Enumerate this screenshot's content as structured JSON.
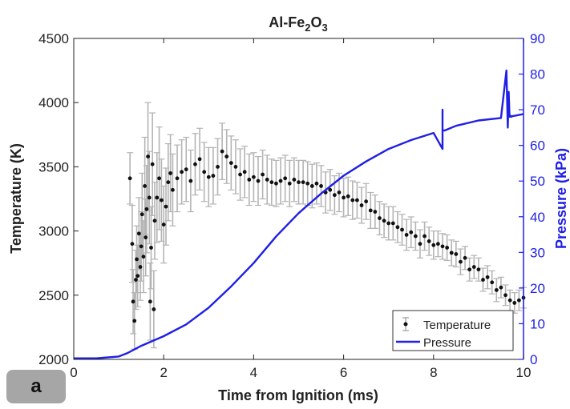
{
  "panel_label": "a",
  "chart_data": {
    "type": "scatter",
    "title_main": "Al-Fe",
    "title_sub1": "2",
    "title_mid": "O",
    "title_sub2": "3",
    "xlabel": "Time from Ignition (ms)",
    "ylabel_left": "Temperature (K)",
    "ylabel_right": "Pressure (kPa)",
    "xlim": [
      0,
      10
    ],
    "ylim_left": [
      2000,
      4500
    ],
    "ylim_right": [
      0,
      90
    ],
    "xticks": [
      "0",
      "2",
      "4",
      "6",
      "8",
      "10"
    ],
    "yticks_left": [
      "2000",
      "2500",
      "3000",
      "3500",
      "4000",
      "4500"
    ],
    "yticks_right": [
      "0",
      "10",
      "20",
      "30",
      "40",
      "50",
      "60",
      "70",
      "80",
      "90"
    ],
    "legend_position": "bottom-right",
    "colors": {
      "temperature": "#111111",
      "error": "#b4b4b4",
      "pressure": "#1f1fe6",
      "right_axis": "#1f1fe6"
    },
    "series": [
      {
        "name": "Temperature",
        "axis": "left",
        "style": "points-with-error-bars",
        "x": [
          1.25,
          1.3,
          1.32,
          1.35,
          1.38,
          1.4,
          1.42,
          1.45,
          1.48,
          1.5,
          1.52,
          1.55,
          1.58,
          1.6,
          1.62,
          1.65,
          1.68,
          1.7,
          1.72,
          1.75,
          1.78,
          1.8,
          1.85,
          1.9,
          1.95,
          2.0,
          2.05,
          2.1,
          2.15,
          2.2,
          2.3,
          2.4,
          2.5,
          2.6,
          2.7,
          2.8,
          2.9,
          3.0,
          3.1,
          3.2,
          3.3,
          3.4,
          3.5,
          3.6,
          3.7,
          3.8,
          3.9,
          4.0,
          4.1,
          4.2,
          4.3,
          4.4,
          4.5,
          4.6,
          4.7,
          4.8,
          4.9,
          5.0,
          5.1,
          5.2,
          5.3,
          5.4,
          5.5,
          5.6,
          5.7,
          5.8,
          5.9,
          6.0,
          6.1,
          6.2,
          6.3,
          6.4,
          6.5,
          6.6,
          6.7,
          6.8,
          6.9,
          7.0,
          7.1,
          7.2,
          7.3,
          7.4,
          7.5,
          7.6,
          7.7,
          7.8,
          7.9,
          8.0,
          8.1,
          8.2,
          8.3,
          8.4,
          8.5,
          8.6,
          8.7,
          8.8,
          8.9,
          9.0,
          9.1,
          9.2,
          9.3,
          9.4,
          9.5,
          9.6,
          9.7,
          9.8,
          9.9,
          10.0
        ],
        "y": [
          3410,
          2900,
          2450,
          2300,
          2620,
          2780,
          2650,
          2980,
          2720,
          2880,
          3130,
          2800,
          3350,
          2950,
          3170,
          3580,
          3260,
          2450,
          2870,
          3520,
          2390,
          3080,
          3260,
          3410,
          3240,
          3050,
          3190,
          3380,
          3450,
          3320,
          3410,
          3460,
          3480,
          3390,
          3520,
          3560,
          3460,
          3420,
          3430,
          3500,
          3620,
          3580,
          3530,
          3500,
          3440,
          3460,
          3400,
          3420,
          3390,
          3440,
          3400,
          3380,
          3370,
          3390,
          3410,
          3370,
          3400,
          3380,
          3380,
          3370,
          3350,
          3370,
          3350,
          3300,
          3320,
          3280,
          3300,
          3260,
          3270,
          3240,
          3240,
          3200,
          3230,
          3160,
          3150,
          3100,
          3080,
          3060,
          3060,
          3030,
          3010,
          2970,
          2990,
          2960,
          2900,
          2960,
          2920,
          2890,
          2900,
          2880,
          2870,
          2830,
          2820,
          2760,
          2790,
          2700,
          2720,
          2700,
          2620,
          2640,
          2600,
          2540,
          2560,
          2500,
          2460,
          2440,
          2460,
          2480
        ],
        "error": [
          200,
          300,
          250,
          220,
          230,
          260,
          240,
          280,
          260,
          270,
          320,
          280,
          380,
          300,
          340,
          420,
          360,
          300,
          320,
          400,
          300,
          300,
          350,
          400,
          320,
          300,
          300,
          300,
          300,
          280,
          260,
          250,
          250,
          240,
          240,
          240,
          230,
          230,
          220,
          220,
          220,
          210,
          210,
          210,
          200,
          200,
          200,
          190,
          190,
          190,
          190,
          180,
          180,
          180,
          180,
          180,
          170,
          170,
          170,
          170,
          170,
          160,
          160,
          160,
          160,
          150,
          150,
          150,
          150,
          150,
          140,
          140,
          140,
          140,
          130,
          130,
          130,
          130,
          130,
          120,
          120,
          120,
          120,
          110,
          110,
          110,
          110,
          110,
          100,
          100,
          100,
          100,
          100,
          100,
          90,
          90,
          90,
          90,
          90,
          90,
          90,
          90,
          80,
          80,
          80,
          80,
          80,
          80
        ]
      },
      {
        "name": "Pressure",
        "axis": "right",
        "style": "line",
        "x": [
          0,
          0.5,
          1.0,
          1.2,
          1.5,
          2.0,
          2.5,
          3.0,
          3.5,
          4.0,
          4.5,
          5.0,
          5.5,
          6.0,
          6.5,
          7.0,
          7.5,
          8.0,
          8.2,
          8.2,
          8.2,
          8.25,
          8.5,
          9.0,
          9.5,
          9.62,
          9.65,
          9.67,
          9.69,
          9.71,
          9.73,
          9.75,
          9.8,
          10.0
        ],
        "y": [
          0.3,
          0.3,
          0.8,
          1.8,
          3.8,
          6.5,
          9.8,
          14.5,
          20.5,
          27,
          34.5,
          41,
          46.5,
          51.5,
          55.5,
          59,
          61.5,
          63.5,
          59,
          70,
          64.2,
          64.2,
          65.5,
          67,
          67.7,
          81,
          65,
          75,
          68,
          68.3,
          68,
          68.2,
          68.3,
          68.8
        ]
      }
    ]
  }
}
